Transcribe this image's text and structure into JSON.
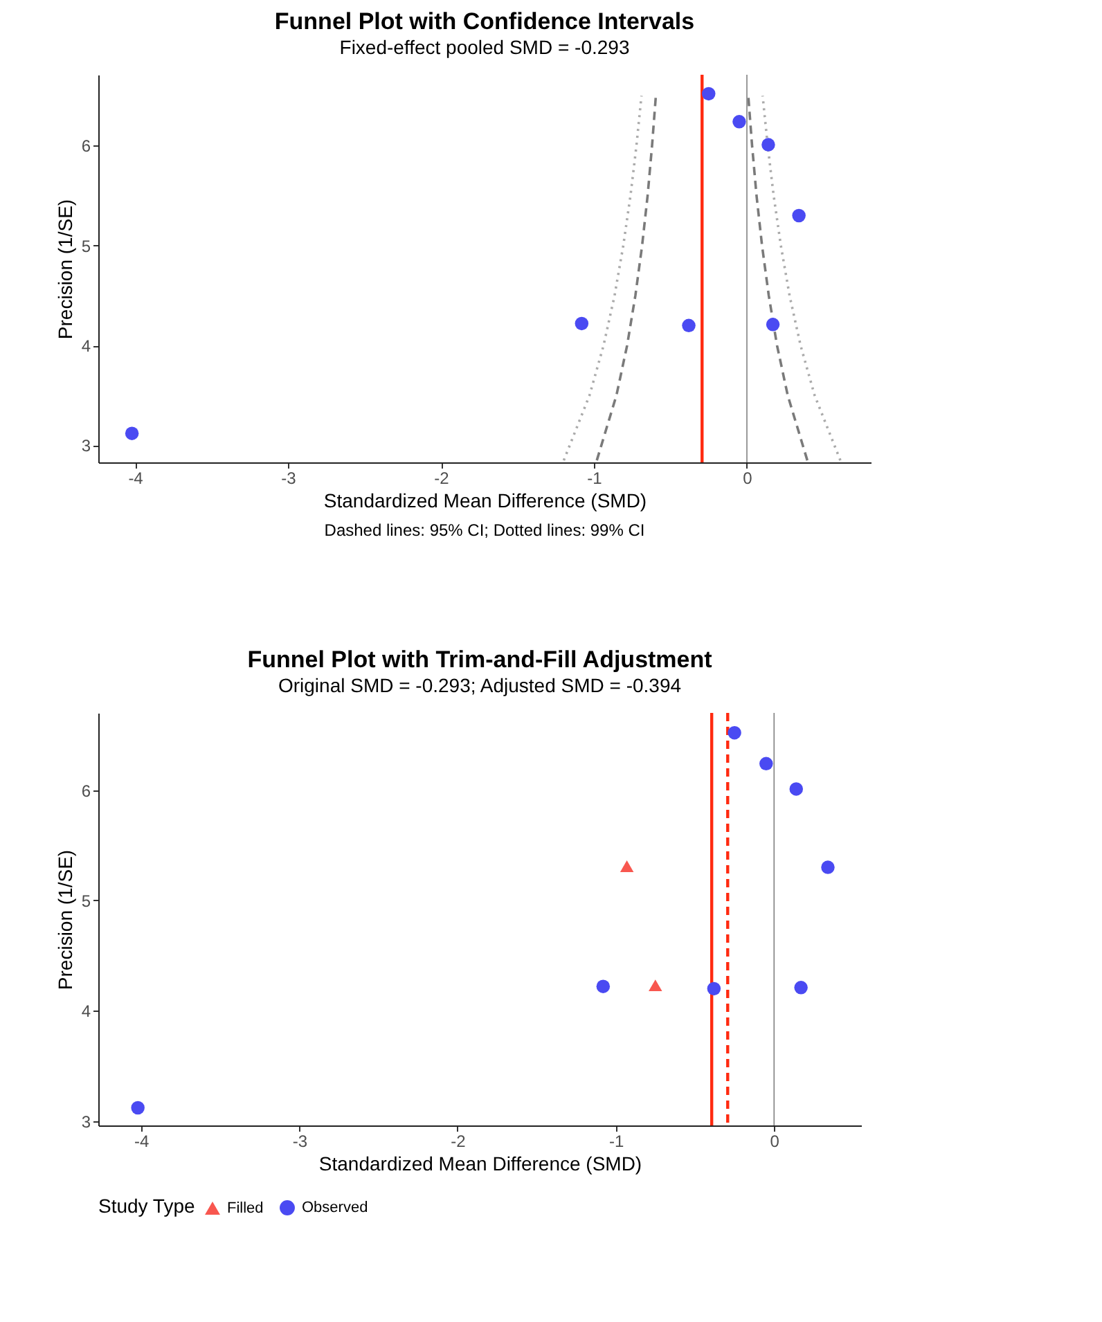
{
  "chart_data": [
    {
      "type": "scatter",
      "title": "Funnel Plot with Confidence Intervals",
      "subtitle": "Fixed-effect pooled SMD = -0.293",
      "xlabel": "Standardized Mean Difference (SMD)",
      "ylabel": "Precision (1/SE)",
      "annotations": [
        "Dashed lines: 95% CI; Dotted lines: 99% CI"
      ],
      "xlim": [
        -4.24,
        0.81
      ],
      "xticks": [
        -4,
        -3,
        -2,
        -1,
        0
      ],
      "ylim": [
        2.83,
        6.71
      ],
      "yticks": [
        3,
        4,
        5,
        6
      ],
      "grid": false,
      "series": [
        {
          "type": "line",
          "line_style": "dotted",
          "color": "#aaaaaa",
          "x": [
            -1.197,
            -1.029,
            -0.937,
            -0.865,
            -0.808,
            -0.761,
            -0.722,
            -0.689
          ],
          "values": [
            2.85,
            3.5,
            4,
            4.5,
            5,
            5.5,
            6,
            6.5
          ]
        },
        {
          "type": "line",
          "line_style": "dotted",
          "color": "#aaaaaa",
          "x": [
            0.611,
            0.443,
            0.351,
            0.279,
            0.222,
            0.175,
            0.136,
            0.103
          ],
          "values": [
            2.85,
            3.5,
            4,
            4.5,
            5,
            5.5,
            6,
            6.5
          ]
        },
        {
          "type": "line",
          "line_style": "dashed",
          "color": "#7a7a7a",
          "x": [
            -0.981,
            -0.853,
            -0.783,
            -0.729,
            -0.685,
            -0.649,
            -0.62,
            -0.595
          ],
          "values": [
            2.85,
            3.5,
            4,
            4.5,
            5,
            5.5,
            6,
            6.5
          ]
        },
        {
          "type": "line",
          "line_style": "dashed",
          "color": "#7a7a7a",
          "x": [
            0.395,
            0.267,
            0.197,
            0.143,
            0.099,
            0.063,
            0.034,
            0.009
          ],
          "values": [
            2.85,
            3.5,
            4,
            4.5,
            5,
            5.5,
            6,
            6.5
          ]
        },
        {
          "type": "scatter",
          "marker": "circle",
          "color": "#4a4af2",
          "x": [
            -4.02,
            -1.08,
            -0.38,
            -0.25,
            -0.05,
            0.14,
            0.34,
            0.17
          ],
          "values": [
            3.12,
            4.22,
            4.2,
            6.52,
            6.24,
            6.01,
            5.3,
            4.21
          ]
        }
      ],
      "ref_lines": [
        {
          "axis": "x",
          "value": 0,
          "color": "#808080",
          "line_style": "solid"
        },
        {
          "axis": "x",
          "value": -0.293,
          "color": "#ff2a10",
          "line_style": "solid"
        }
      ]
    },
    {
      "type": "scatter",
      "title": "Funnel Plot with Trim-and-Fill Adjustment",
      "subtitle": "Original SMD = -0.293; Adjusted SMD = -0.394",
      "xlabel": "Standardized Mean Difference (SMD)",
      "ylabel": "Precision (1/SE)",
      "legend_title": "Study Type",
      "legend": "bottom",
      "grid": false,
      "xlim": [
        -4.27,
        0.55
      ],
      "xticks": [
        -4,
        -3,
        -2,
        -1,
        0
      ],
      "ylim": [
        2.96,
        6.7
      ],
      "yticks": [
        3,
        4,
        5,
        6
      ],
      "series": [
        {
          "type": "scatter",
          "name": "Filled",
          "marker": "triangle",
          "color": "#f8574f",
          "x": [
            -0.93,
            -0.75
          ],
          "values": [
            5.31,
            4.23
          ]
        },
        {
          "type": "scatter",
          "name": "Observed",
          "marker": "circle",
          "color": "#4a4af2",
          "x": [
            -4.02,
            -1.08,
            -0.38,
            -0.25,
            -0.05,
            0.14,
            0.34,
            0.17
          ],
          "values": [
            3.12,
            4.22,
            4.2,
            6.52,
            6.24,
            6.01,
            5.3,
            4.21
          ]
        }
      ],
      "ref_lines": [
        {
          "axis": "x",
          "value": 0,
          "color": "#808080",
          "line_style": "solid"
        },
        {
          "axis": "x",
          "value": -0.394,
          "color": "#ff2a10",
          "line_style": "solid"
        },
        {
          "axis": "x",
          "value": -0.293,
          "color": "#ff2a10",
          "line_style": "dashed"
        }
      ]
    }
  ]
}
